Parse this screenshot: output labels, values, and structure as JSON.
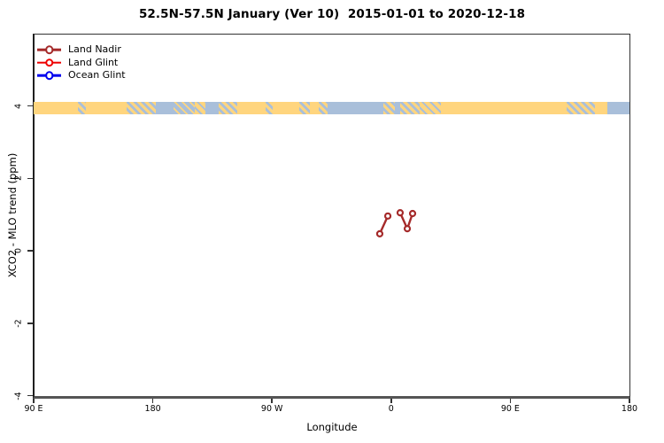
{
  "window": {
    "background_color": "#ffffff"
  },
  "chart_data": {
    "type": "scatter",
    "title": "52.5N-57.5N January (Ver 10)  2015-01-01 to 2020-12-18",
    "xlabel": "Longitude",
    "ylabel": "XCO2 - MLO trend (ppm)",
    "grid": false,
    "legend_position": "top-left-inside",
    "x_axis": {
      "tick_labels": [
        "90 E",
        "180",
        "90 W",
        "0",
        "90 E",
        "180"
      ],
      "tick_axis_units_deg": [
        90,
        180,
        270,
        360,
        450,
        540
      ],
      "start_deg_east": 90,
      "span_deg": 450
    },
    "y_axis": {
      "tick_labels": [
        "4",
        "2",
        "0",
        "-2",
        "-4"
      ],
      "tick_values": [
        4,
        2,
        0,
        -2,
        -4
      ],
      "ylim": [
        -4,
        6
      ]
    },
    "series": [
      {
        "name": "Land Nadir",
        "color": "#A52A2A",
        "marker": "open-circle",
        "segments": [
          [
            {
              "lon": -8.6,
              "value": 0.47
            },
            {
              "lon": -2.5,
              "value": 0.96
            }
          ],
          [
            {
              "lon": 6.8,
              "value": 1.05
            },
            {
              "lon": 12.2,
              "value": 0.61
            },
            {
              "lon": 16.2,
              "value": 1.03
            }
          ]
        ]
      },
      {
        "name": "Land Glint",
        "color": "#EE0000",
        "marker": "open-circle",
        "segments": []
      },
      {
        "name": "Ocean Glint",
        "color": "#0000EE",
        "marker": "open-circle",
        "segments": []
      }
    ],
    "map_strip": {
      "description": "world land/ocean band at 52.5N-57.5N drawn at y = 4 ppm",
      "center_value": 4,
      "land_color": "#FFD57E",
      "ocean_color": "#A9BFDA",
      "segments": [
        {
          "from": 0.0,
          "to": 0.0743,
          "type": "land",
          "region": "siberia-west"
        },
        {
          "from": 0.0743,
          "to": 0.0877,
          "type": "mixed",
          "region": "lake-baikal"
        },
        {
          "from": 0.0877,
          "to": 0.156,
          "type": "land",
          "region": "siberia-east"
        },
        {
          "from": 0.156,
          "to": 0.2051,
          "type": "mixed",
          "region": "okhotsk-coast"
        },
        {
          "from": 0.2051,
          "to": 0.2348,
          "type": "ocean",
          "region": "bering-sea-west"
        },
        {
          "from": 0.2348,
          "to": 0.2704,
          "type": "mixed_ocean",
          "region": "bering-islands"
        },
        {
          "from": 0.2704,
          "to": 0.2882,
          "type": "mixed_land",
          "region": "alaska-peninsula"
        },
        {
          "from": 0.2882,
          "to": 0.3106,
          "type": "ocean",
          "region": "gulf-of-alaska"
        },
        {
          "from": 0.3106,
          "to": 0.3417,
          "type": "mixed",
          "region": "alaska-coast"
        },
        {
          "from": 0.3417,
          "to": 0.3893,
          "type": "land",
          "region": "canada-west"
        },
        {
          "from": 0.3893,
          "to": 0.4012,
          "type": "mixed",
          "region": "canadian-lakes"
        },
        {
          "from": 0.4012,
          "to": 0.4458,
          "type": "land",
          "region": "canada-central"
        },
        {
          "from": 0.4458,
          "to": 0.4636,
          "type": "mixed",
          "region": "hudson-bay"
        },
        {
          "from": 0.4636,
          "to": 0.4785,
          "type": "land",
          "region": "quebec-labrador"
        },
        {
          "from": 0.4785,
          "to": 0.4933,
          "type": "mixed",
          "region": "labrador-coast"
        },
        {
          "from": 0.4933,
          "to": 0.5869,
          "type": "ocean",
          "region": "north-atlantic"
        },
        {
          "from": 0.5869,
          "to": 0.6062,
          "type": "mixed",
          "region": "ireland-uk"
        },
        {
          "from": 0.6062,
          "to": 0.6152,
          "type": "ocean",
          "region": "north-sea"
        },
        {
          "from": 0.6152,
          "to": 0.6478,
          "type": "mixed",
          "region": "denmark-baltic"
        },
        {
          "from": 0.6478,
          "to": 0.6835,
          "type": "mixed_land",
          "region": "baltic-east"
        },
        {
          "from": 0.6835,
          "to": 0.8945,
          "type": "land",
          "region": "russia"
        },
        {
          "from": 0.8945,
          "to": 0.942,
          "type": "mixed",
          "region": "sea-of-okhotsk"
        },
        {
          "from": 0.942,
          "to": 0.9628,
          "type": "land",
          "region": "kamchatka"
        },
        {
          "from": 0.9628,
          "to": 1.0,
          "type": "ocean",
          "region": "bering-sea"
        }
      ]
    }
  },
  "legend": {
    "entries": [
      {
        "label": "Land Nadir",
        "color": "#A52A2A"
      },
      {
        "label": "Land Glint",
        "color": "#EE0000"
      },
      {
        "label": "Ocean Glint",
        "color": "#0000EE"
      }
    ]
  }
}
